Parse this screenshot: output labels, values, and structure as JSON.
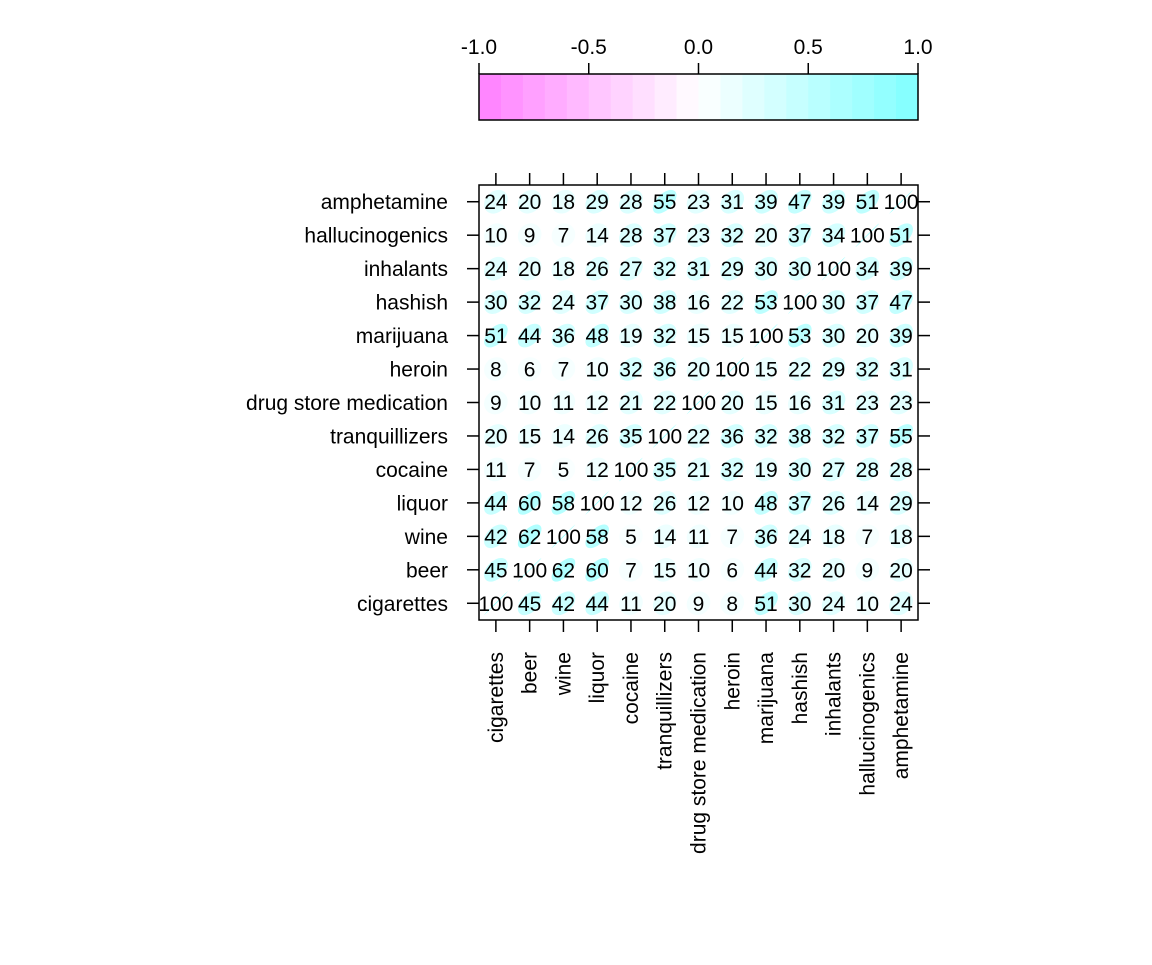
{
  "chart_data": {
    "type": "heatmap",
    "title": "",
    "xlabel": "",
    "ylabel": "",
    "variables": [
      "cigarettes",
      "beer",
      "wine",
      "liquor",
      "cocaine",
      "tranquillizers",
      "drug store medication",
      "heroin",
      "marijuana",
      "hashish",
      "inhalants",
      "hallucinogenics",
      "amphetamine"
    ],
    "x_tick_labels": [
      "cigarettes",
      "beer",
      "wine",
      "liquor",
      "cocaine",
      "tranquillizers",
      "drug store medication",
      "heroin",
      "marijuana",
      "hashish",
      "inhalants",
      "hallucinogenics",
      "amphetamine"
    ],
    "y_tick_labels_bottom_to_top": [
      "cigarettes",
      "beer",
      "wine",
      "liquor",
      "cocaine",
      "tranquillizers",
      "drug store medication",
      "heroin",
      "marijuana",
      "hashish",
      "inhalants",
      "hallucinogenics",
      "amphetamine"
    ],
    "matrix_labels": [
      [
        "100",
        "45",
        "42",
        "44",
        "11",
        "20",
        "9",
        "8",
        "51",
        "30",
        "24",
        "10",
        "24"
      ],
      [
        "45",
        "100",
        "62",
        "60",
        "7",
        "15",
        "10",
        "6",
        "44",
        "32",
        "20",
        "9",
        "20"
      ],
      [
        "42",
        "62",
        "100",
        "58",
        "5",
        "14",
        "11",
        "7",
        "36",
        "24",
        "18",
        "7",
        "18"
      ],
      [
        "44",
        "60",
        "58",
        "100",
        "12",
        "26",
        "12",
        "10",
        "48",
        "37",
        "26",
        "14",
        "29"
      ],
      [
        "11",
        "7",
        "5",
        "12",
        "100",
        "35",
        "21",
        "32",
        "19",
        "30",
        "27",
        "28",
        "28"
      ],
      [
        "20",
        "15",
        "14",
        "26",
        "35",
        "100",
        "22",
        "36",
        "32",
        "38",
        "32",
        "37",
        "55"
      ],
      [
        "9",
        "10",
        "11",
        "12",
        "21",
        "22",
        "100",
        "20",
        "15",
        "16",
        "31",
        "23",
        "23"
      ],
      [
        "8",
        "6",
        "7",
        "10",
        "32",
        "36",
        "20",
        "100",
        "15",
        "22",
        "29",
        "32",
        "31"
      ],
      [
        "51",
        "44",
        "36",
        "48",
        "19",
        "32",
        "15",
        "15",
        "100",
        "53",
        "30",
        "20",
        "39"
      ],
      [
        "30",
        "32",
        "24",
        "37",
        "30",
        "38",
        "16",
        "22",
        "53",
        "100",
        "30",
        "37",
        "47"
      ],
      [
        "24",
        "20",
        "18",
        "26",
        "27",
        "32",
        "31",
        "29",
        "30",
        "30",
        "100",
        "34",
        "39"
      ],
      [
        "10",
        "9",
        "7",
        "14",
        "28",
        "37",
        "23",
        "32",
        "20",
        "37",
        "34",
        "100",
        "51"
      ],
      [
        "24",
        "20",
        "18",
        "29",
        "28",
        "55",
        "23",
        "31",
        "39",
        "47",
        "39",
        "51",
        "100"
      ]
    ],
    "value_scale": 100,
    "colorkey": {
      "range": [
        -1.0,
        1.0
      ],
      "tick_values": [
        -1.0,
        -0.5,
        0.0,
        0.5,
        1.0
      ],
      "tick_labels": [
        "-1.0",
        "-0.5",
        "0.0",
        "0.5",
        "1.0"
      ],
      "low_color": "#ff80ff",
      "mid_color": "#ffffff",
      "high_color": "#80ffff",
      "steps": 20
    },
    "grid": false,
    "legend_position": "top"
  }
}
